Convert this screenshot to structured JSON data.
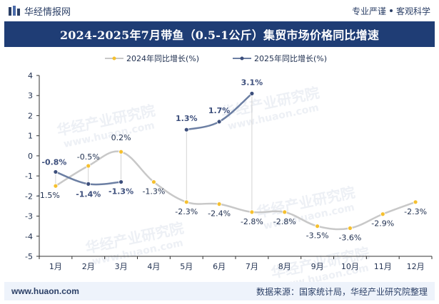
{
  "header": {
    "brand_name": "华经情报网",
    "slogan_left": "专业严谨",
    "slogan_right": "客观科学"
  },
  "title": "2024-2025年7月带鱼（0.5-1公斤）集贸市场价格同比增速",
  "watermark_cn": "华经产业研究院",
  "watermark_url": "www.huaon.com",
  "footer": {
    "site": "www.huaon.com",
    "source": "数据来源：国家统计局，华经产业研究院整理"
  },
  "colors": {
    "series_2024": "#f5c02f",
    "series_2025": "#3d4f7c",
    "line_2024": "#c8c8c8",
    "line_2025": "#6c7fa3",
    "title_bg": "#1f3d75"
  },
  "chart_data": {
    "type": "line",
    "categories": [
      "1月",
      "2月",
      "3月",
      "4月",
      "5月",
      "6月",
      "7月",
      "8月",
      "9月",
      "10月",
      "11月",
      "12月"
    ],
    "ylim": [
      -5,
      4
    ],
    "yticks": [
      -5,
      -4,
      -3,
      -2,
      -1,
      0,
      1,
      2,
      3,
      4
    ],
    "legend_position": "top",
    "grid": false,
    "series": [
      {
        "name": "2024年同比增长(%)",
        "values": [
          -1.5,
          -0.5,
          0.2,
          -1.3,
          -2.3,
          -2.4,
          -2.8,
          -2.8,
          -3.5,
          -3.6,
          -2.9,
          -2.3
        ],
        "labels": [
          "-1.5%",
          "-0.5%",
          "0.2%",
          "-1.3%",
          "-2.3%",
          "-2.4%",
          "-2.8%",
          "-2.8%",
          "-3.5%",
          "-3.6%",
          "-2.9%",
          "-2.3%"
        ]
      },
      {
        "name": "2025年同比增长(%)",
        "values": [
          -0.8,
          -1.4,
          -1.3,
          null,
          1.3,
          1.7,
          3.1,
          null,
          null,
          null,
          null,
          null
        ],
        "labels": [
          "-0.8%",
          "-1.4%",
          "-1.3%",
          "",
          "1.3%",
          "1.7%",
          "3.1%",
          "",
          "",
          "",
          "",
          ""
        ]
      }
    ]
  }
}
